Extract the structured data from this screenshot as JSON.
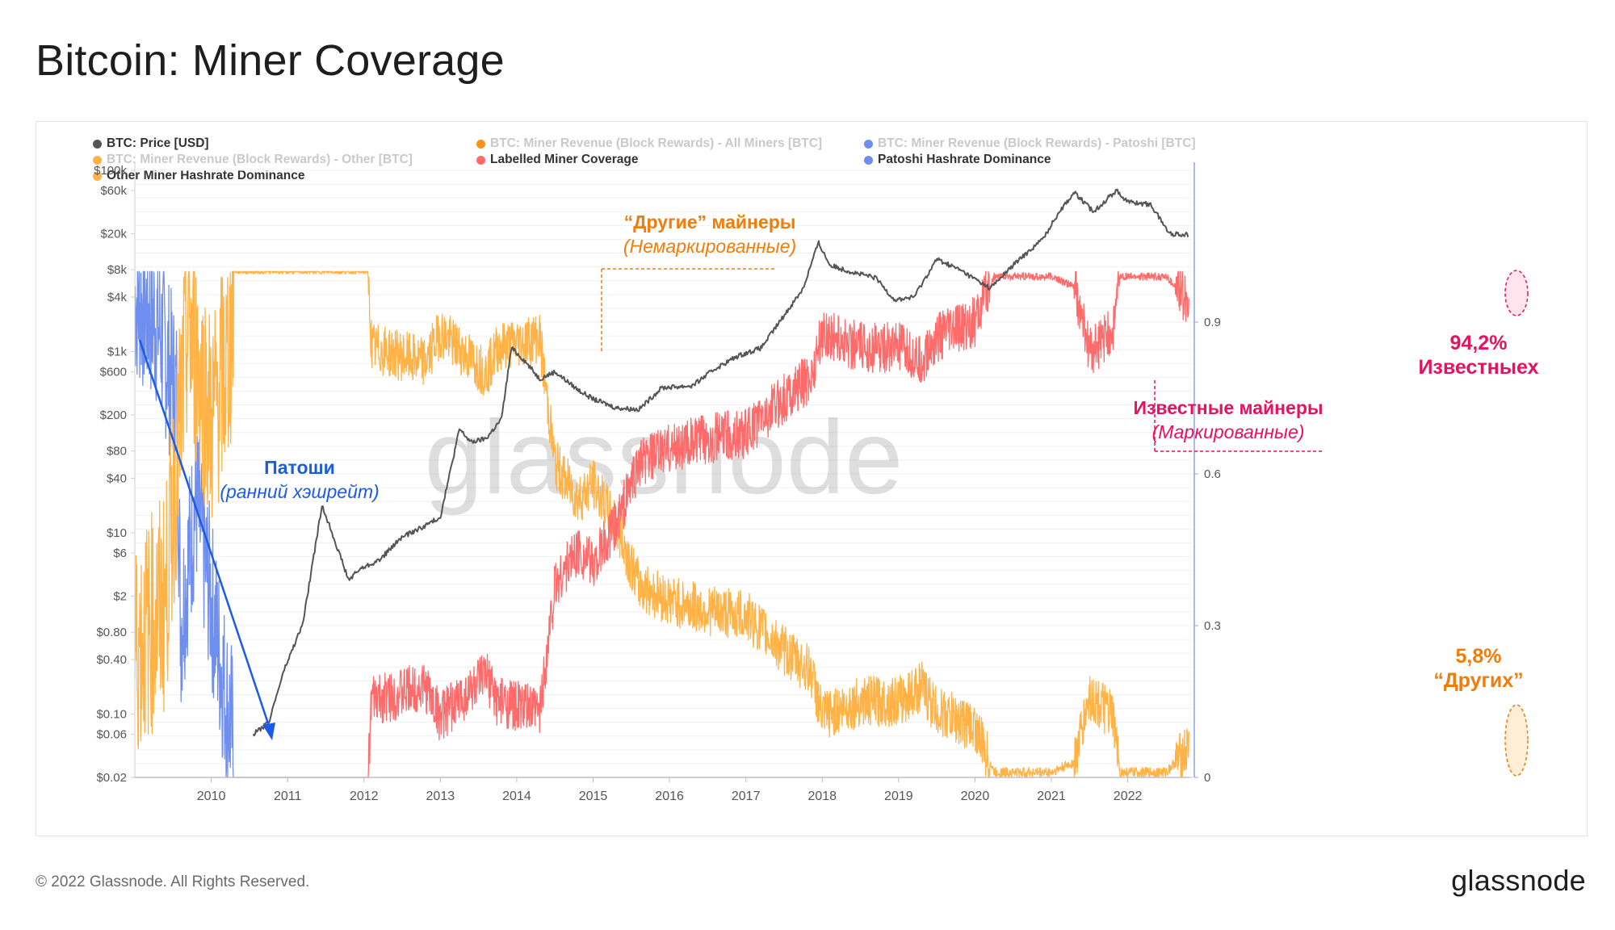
{
  "title": "Bitcoin: Miner Coverage",
  "legend": [
    {
      "label": "BTC: Price [USD]",
      "color": "#555555",
      "active": true
    },
    {
      "label": "BTC: Miner Revenue (Block Rewards) - All Miners [BTC]",
      "color": "#f7931a",
      "active": false
    },
    {
      "label": "BTC: Miner Revenue (Block Rewards) - Patoshi [BTC]",
      "color": "#6f8ff0",
      "active": false
    },
    {
      "label": "BTC: Miner Revenue (Block Rewards) - Other [BTC]",
      "color": "#ffb347",
      "active": false
    },
    {
      "label": "Labelled Miner Coverage",
      "color": "#ff6b6b",
      "active": true
    },
    {
      "label": "Patoshi Hashrate Dominance",
      "color": "#6f8ff0",
      "active": true
    },
    {
      "label": "Other Miner Hashrate Dominance",
      "color": "#ffb347",
      "active": true
    }
  ],
  "annotations": {
    "other_title": "“Другие” майнеры",
    "other_sub": "(Немаркированные)",
    "known_title": "Известные майнеры",
    "known_sub": "(Маркированные)",
    "patoshi_title": "Патоши",
    "patoshi_sub": "(ранний хэшрейт)",
    "known_pct": "94,2%",
    "known_pct_label": "Известныех",
    "other_pct": "5,8%",
    "other_pct_label": "“Других”"
  },
  "watermark": "glassnode",
  "footer": {
    "copyright": "© 2022 Glassnode. All Rights Reserved.",
    "logo": "glassnode"
  },
  "colors": {
    "price": "#555555",
    "labelled": "#ff6b6b",
    "other": "#ffb347",
    "patoshi": "#6f8ff0",
    "anno_orange": "#f07d0a",
    "anno_pink": "#e8115f",
    "anno_blue": "#1a5ce6"
  },
  "chart_data": {
    "type": "line",
    "x_range": [
      "2009-01",
      "2022-10"
    ],
    "x_ticks": [
      "2010",
      "2011",
      "2012",
      "2013",
      "2014",
      "2015",
      "2016",
      "2017",
      "2018",
      "2019",
      "2020",
      "2021",
      "2022"
    ],
    "y_left": {
      "scale": "log",
      "unit": "USD",
      "ticks": [
        "$100k",
        "$60k",
        "$20k",
        "$8k",
        "$4k",
        "$1k",
        "$600",
        "$200",
        "$80",
        "$40",
        "$10",
        "$6",
        "$2",
        "$0.80",
        "$0.40",
        "$0.10",
        "$0.06",
        "$0.02"
      ],
      "tick_values": [
        100000,
        60000,
        20000,
        8000,
        4000,
        1000,
        600,
        200,
        80,
        40,
        10,
        6,
        2,
        0.8,
        0.4,
        0.1,
        0.06,
        0.02
      ]
    },
    "y_right": {
      "scale": "linear",
      "ticks": [
        "0",
        "0.3",
        "0.6",
        "0.9"
      ],
      "tick_values": [
        0,
        0.3,
        0.6,
        0.9
      ],
      "range": [
        0,
        1.2
      ]
    },
    "series": [
      {
        "name": "BTC: Price [USD]",
        "axis": "left",
        "x": [
          2010.55,
          2010.75,
          2010.95,
          2011.2,
          2011.45,
          2011.55,
          2011.8,
          2011.95,
          2012.2,
          2012.5,
          2012.8,
          2013.0,
          2013.25,
          2013.4,
          2013.6,
          2013.8,
          2013.93,
          2014.1,
          2014.3,
          2014.5,
          2014.8,
          2015.0,
          2015.3,
          2015.6,
          2015.9,
          2016.3,
          2016.6,
          2016.9,
          2017.2,
          2017.5,
          2017.75,
          2017.95,
          2018.1,
          2018.4,
          2018.7,
          2018.95,
          2019.2,
          2019.5,
          2019.8,
          2020.2,
          2020.5,
          2020.9,
          2021.1,
          2021.3,
          2021.55,
          2021.85,
          2022.0,
          2022.3,
          2022.55,
          2022.8
        ],
        "values": [
          0.06,
          0.08,
          0.3,
          1,
          20,
          12,
          3,
          4,
          5,
          9,
          12,
          15,
          140,
          100,
          110,
          180,
          1100,
          800,
          500,
          600,
          380,
          300,
          240,
          230,
          400,
          420,
          650,
          900,
          1100,
          2500,
          5000,
          16000,
          9000,
          7500,
          6500,
          3700,
          4000,
          10500,
          8000,
          5000,
          9000,
          18000,
          35000,
          57000,
          35000,
          60000,
          45000,
          42000,
          20000,
          19500
        ]
      },
      {
        "name": "Labelled Miner Coverage",
        "axis": "right",
        "x": [
          2009.0,
          2012.05,
          2012.1,
          2012.8,
          2013.0,
          2013.6,
          2013.75,
          2014.3,
          2014.5,
          2014.8,
          2015.0,
          2015.3,
          2015.6,
          2016.0,
          2016.5,
          2017.0,
          2017.5,
          2017.85,
          2018.0,
          2018.5,
          2019.0,
          2019.3,
          2019.5,
          2020.0,
          2020.25,
          2020.3,
          2021.0,
          2021.3,
          2021.5,
          2021.8,
          2021.9,
          2022.0,
          2022.5,
          2022.8
        ],
        "values": [
          0.0,
          0.0,
          0.15,
          0.18,
          0.12,
          0.2,
          0.15,
          0.13,
          0.38,
          0.45,
          0.42,
          0.5,
          0.62,
          0.65,
          0.67,
          0.68,
          0.75,
          0.79,
          0.88,
          0.85,
          0.85,
          0.82,
          0.87,
          0.9,
          0.99,
          0.99,
          0.99,
          0.97,
          0.84,
          0.88,
          0.99,
          0.99,
          0.99,
          0.942
        ]
      },
      {
        "name": "Other Miner Hashrate Dominance",
        "axis": "right",
        "x": [
          2009.0,
          2009.4,
          2009.7,
          2010.0,
          2010.25,
          2010.3,
          2012.05,
          2012.1,
          2012.8,
          2013.0,
          2013.6,
          2013.75,
          2014.3,
          2014.5,
          2014.8,
          2015.0,
          2015.3,
          2015.6,
          2016.0,
          2016.5,
          2017.0,
          2017.5,
          2017.85,
          2018.0,
          2018.5,
          2019.0,
          2019.3,
          2019.5,
          2020.0,
          2020.25,
          2020.3,
          2021.0,
          2021.3,
          2021.5,
          2021.8,
          2021.9,
          2022.0,
          2022.5,
          2022.8
        ],
        "values": [
          0.25,
          0.35,
          0.9,
          0.7,
          0.85,
          1.0,
          1.0,
          0.85,
          0.82,
          0.88,
          0.8,
          0.85,
          0.87,
          0.62,
          0.55,
          0.58,
          0.5,
          0.38,
          0.35,
          0.33,
          0.32,
          0.25,
          0.21,
          0.12,
          0.15,
          0.15,
          0.18,
          0.13,
          0.1,
          0.01,
          0.01,
          0.01,
          0.03,
          0.16,
          0.12,
          0.01,
          0.01,
          0.01,
          0.058
        ]
      },
      {
        "name": "Patoshi Hashrate Dominance",
        "axis": "right",
        "x": [
          2009.0,
          2009.3,
          2009.55,
          2009.6,
          2009.8,
          2010.0,
          2010.2,
          2010.27,
          2010.3,
          2022.8
        ],
        "values": [
          0.95,
          0.9,
          0.75,
          0.3,
          0.55,
          0.35,
          0.15,
          0.1,
          0.0,
          0.0
        ]
      }
    ],
    "grid": true,
    "legend_position": "top-left"
  }
}
